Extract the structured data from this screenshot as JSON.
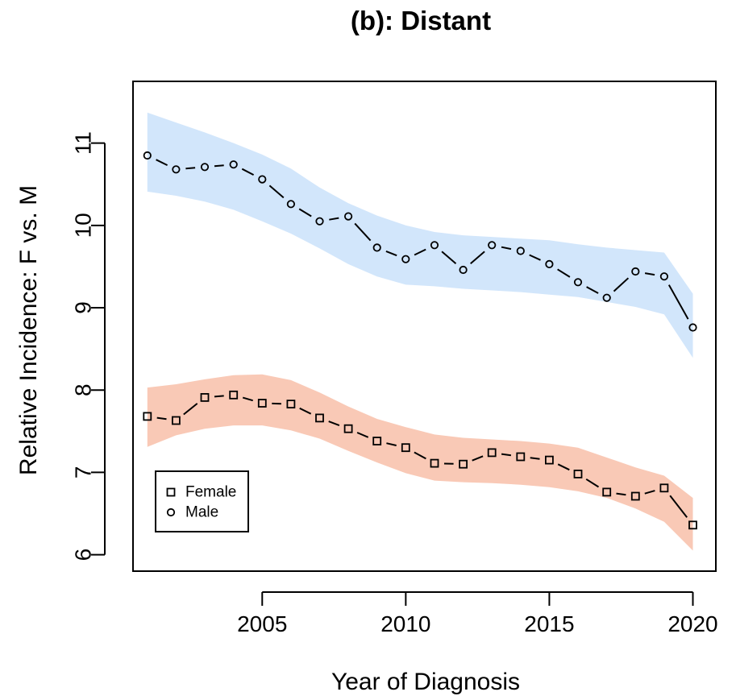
{
  "chart_data": {
    "type": "line",
    "title": "(b): Distant",
    "xlabel": "Year of Diagnosis",
    "ylabel": "Relative Incidence: F vs. M",
    "xlim": [
      2000.5,
      2020.8
    ],
    "ylim": [
      5.8,
      11.75
    ],
    "x_ticks": [
      2005,
      2010,
      2015,
      2020
    ],
    "y_ticks": [
      6,
      7,
      8,
      9,
      10,
      11
    ],
    "legend_position": "bottom-left",
    "grid": false,
    "series": [
      {
        "name": "Female",
        "marker": "square",
        "band_color": "#f9c9b6",
        "x": [
          2001,
          2002,
          2003,
          2004,
          2005,
          2006,
          2007,
          2008,
          2009,
          2010,
          2011,
          2012,
          2013,
          2014,
          2015,
          2016,
          2017,
          2018,
          2019,
          2020
        ],
        "values": [
          7.68,
          7.63,
          7.91,
          7.94,
          7.84,
          7.83,
          7.66,
          7.53,
          7.38,
          7.3,
          7.11,
          7.1,
          7.24,
          7.19,
          7.15,
          6.98,
          6.76,
          6.71,
          6.81,
          6.36
        ],
        "band_x": [
          2001,
          2002,
          2003,
          2004,
          2005,
          2006,
          2007,
          2008,
          2009,
          2010,
          2011,
          2012,
          2013,
          2014,
          2015,
          2016,
          2017,
          2018,
          2019,
          2020
        ],
        "band_lower": [
          7.31,
          7.45,
          7.53,
          7.57,
          7.57,
          7.51,
          7.41,
          7.26,
          7.12,
          6.99,
          6.9,
          6.88,
          6.87,
          6.85,
          6.82,
          6.77,
          6.69,
          6.56,
          6.4,
          6.05
        ],
        "band_upper": [
          8.03,
          8.07,
          8.13,
          8.18,
          8.19,
          8.12,
          7.97,
          7.8,
          7.65,
          7.55,
          7.46,
          7.42,
          7.4,
          7.38,
          7.35,
          7.3,
          7.18,
          7.06,
          6.96,
          6.69
        ]
      },
      {
        "name": "Male",
        "marker": "circle",
        "band_color": "#d2e6fb",
        "x": [
          2001,
          2002,
          2003,
          2004,
          2005,
          2006,
          2007,
          2008,
          2009,
          2010,
          2011,
          2012,
          2013,
          2014,
          2015,
          2016,
          2017,
          2018,
          2019,
          2020
        ],
        "values": [
          10.85,
          10.68,
          10.71,
          10.74,
          10.56,
          10.26,
          10.05,
          10.11,
          9.73,
          9.59,
          9.76,
          9.46,
          9.76,
          9.69,
          9.53,
          9.31,
          9.12,
          9.44,
          9.38,
          8.76
        ],
        "band_x": [
          2001,
          2002,
          2003,
          2004,
          2005,
          2006,
          2007,
          2008,
          2009,
          2010,
          2011,
          2012,
          2013,
          2014,
          2015,
          2016,
          2017,
          2018,
          2019,
          2020
        ],
        "band_lower": [
          10.41,
          10.36,
          10.29,
          10.19,
          10.05,
          9.9,
          9.72,
          9.53,
          9.38,
          9.28,
          9.26,
          9.23,
          9.21,
          9.19,
          9.16,
          9.13,
          9.07,
          9.01,
          8.92,
          8.39
        ],
        "band_upper": [
          11.37,
          11.25,
          11.13,
          11.0,
          10.86,
          10.69,
          10.46,
          10.27,
          10.12,
          10.0,
          9.92,
          9.88,
          9.86,
          9.84,
          9.82,
          9.77,
          9.73,
          9.7,
          9.67,
          9.17
        ]
      }
    ]
  }
}
